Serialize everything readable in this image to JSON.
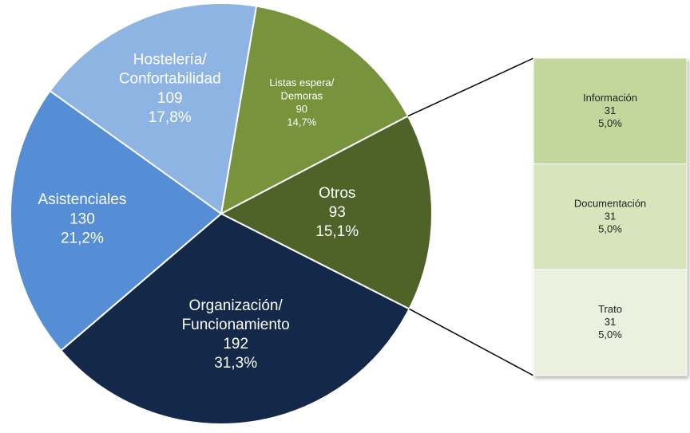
{
  "chart_data": {
    "type": "pie",
    "categories": [
      [
        "Listas espera/",
        "Demoras"
      ],
      [
        "Otros"
      ],
      [
        "Organización/",
        "Funcionamiento"
      ],
      [
        "Asistenciales"
      ],
      [
        "Hostelería/",
        "Confortabilidad"
      ]
    ],
    "values": [
      90,
      93,
      192,
      130,
      109
    ],
    "percents": [
      14.7,
      15.1,
      31.3,
      21.2,
      17.8
    ],
    "percent_labels": [
      "14,7%",
      "15,1%",
      "31,3%",
      "21,2%",
      "17,8%"
    ],
    "colors": [
      "#77933c",
      "#4f6228",
      "#14284a",
      "#558ed5",
      "#8eb4e3"
    ],
    "breakdown": {
      "of": 1,
      "categories": [
        "Información",
        "Documentación",
        "Trato"
      ],
      "values": [
        31,
        31,
        31
      ],
      "percents": [
        5.0,
        5.0,
        5.0
      ],
      "percent_labels": [
        "5,0%",
        "5,0%",
        "5,0%"
      ],
      "colors": [
        "#c3d69b",
        "#d7e4bc",
        "#ebf1de"
      ]
    }
  }
}
